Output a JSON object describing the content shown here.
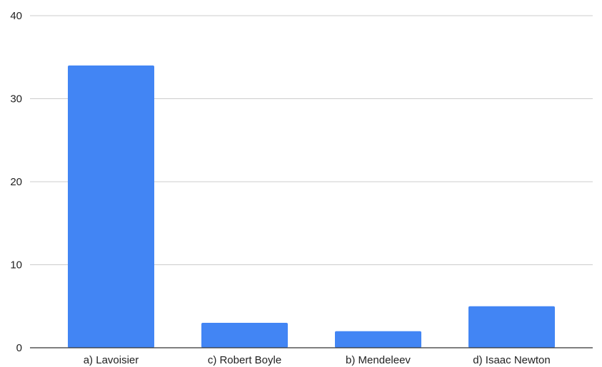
{
  "chart_data": {
    "type": "bar",
    "categories": [
      "a) Lavoisier",
      "c) Robert Boyle",
      "b) Mendeleev",
      "d) Isaac Newton"
    ],
    "values": [
      34,
      3,
      2,
      5
    ],
    "title": "",
    "xlabel": "",
    "ylabel": "",
    "ylim": [
      0,
      40
    ],
    "yticks": [
      0,
      10,
      20,
      30,
      40
    ],
    "grid": true,
    "legend": "none",
    "bar_color": "#4285f4"
  }
}
